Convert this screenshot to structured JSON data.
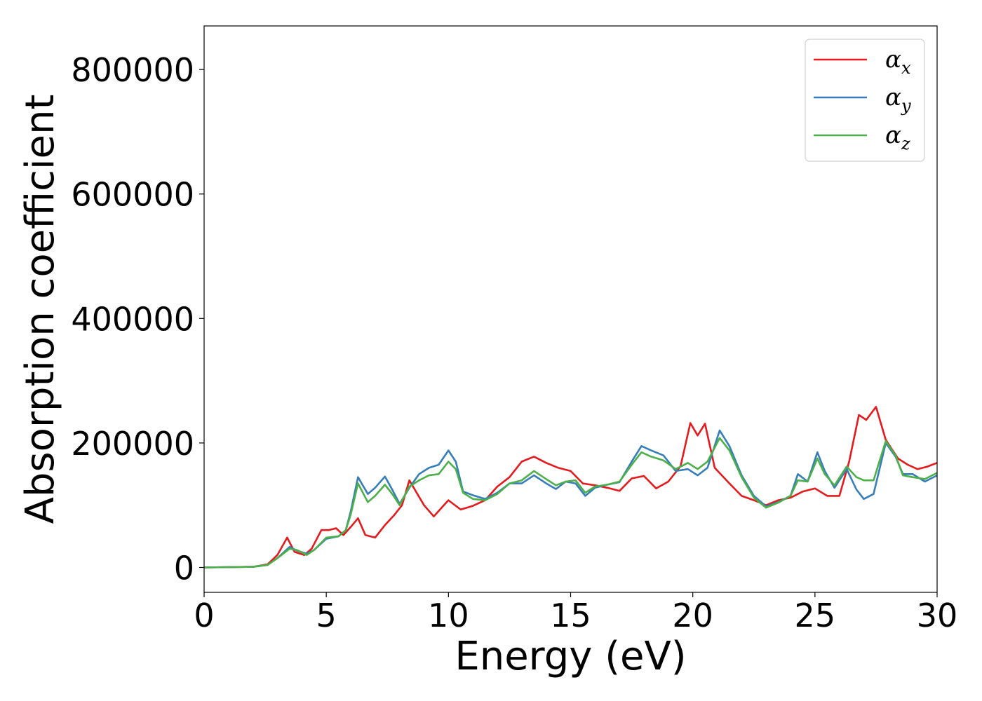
{
  "chart_data": {
    "type": "line",
    "xlabel": "Energy (eV)",
    "ylabel": "Absorption coefficient",
    "xlim": [
      0,
      30
    ],
    "ylim": [
      -40000,
      870000
    ],
    "xticks": [
      "0",
      "5",
      "10",
      "15",
      "20",
      "25",
      "30"
    ],
    "yticks": [
      "0",
      "200000",
      "400000",
      "600000",
      "800000"
    ],
    "legend_position": "top-right",
    "grid": false,
    "series": [
      {
        "name": "α",
        "subscript": "x",
        "color": "#e41a1c",
        "points": [
          [
            0,
            0
          ],
          [
            2,
            1000
          ],
          [
            2.6,
            5000
          ],
          [
            3.0,
            20000
          ],
          [
            3.4,
            48000
          ],
          [
            3.7,
            25000
          ],
          [
            4.1,
            20000
          ],
          [
            4.4,
            30000
          ],
          [
            4.8,
            60000
          ],
          [
            5.1,
            60000
          ],
          [
            5.4,
            63000
          ],
          [
            5.7,
            52000
          ],
          [
            6.0,
            65000
          ],
          [
            6.3,
            79000
          ],
          [
            6.6,
            52000
          ],
          [
            7.0,
            48000
          ],
          [
            7.4,
            68000
          ],
          [
            7.8,
            85000
          ],
          [
            8.1,
            100000
          ],
          [
            8.4,
            140000
          ],
          [
            8.7,
            120000
          ],
          [
            9.0,
            100000
          ],
          [
            9.4,
            82000
          ],
          [
            10.0,
            108000
          ],
          [
            10.5,
            93000
          ],
          [
            11.0,
            99000
          ],
          [
            11.5,
            108000
          ],
          [
            12.0,
            130000
          ],
          [
            12.5,
            145000
          ],
          [
            13.0,
            170000
          ],
          [
            13.5,
            178000
          ],
          [
            14.0,
            168000
          ],
          [
            14.5,
            160000
          ],
          [
            15.0,
            155000
          ],
          [
            15.5,
            135000
          ],
          [
            16.0,
            132000
          ],
          [
            16.5,
            128000
          ],
          [
            17.0,
            123000
          ],
          [
            17.5,
            143000
          ],
          [
            18.0,
            147000
          ],
          [
            18.5,
            127000
          ],
          [
            19.0,
            138000
          ],
          [
            19.5,
            163000
          ],
          [
            19.9,
            232000
          ],
          [
            20.2,
            212000
          ],
          [
            20.5,
            231000
          ],
          [
            20.9,
            160000
          ],
          [
            21.5,
            135000
          ],
          [
            22.0,
            115000
          ],
          [
            22.5,
            108000
          ],
          [
            23.0,
            100000
          ],
          [
            23.5,
            108000
          ],
          [
            24.0,
            112000
          ],
          [
            24.5,
            122000
          ],
          [
            25.0,
            127000
          ],
          [
            25.5,
            115000
          ],
          [
            26.0,
            115000
          ],
          [
            26.4,
            170000
          ],
          [
            26.8,
            245000
          ],
          [
            27.1,
            237000
          ],
          [
            27.5,
            258000
          ],
          [
            27.9,
            205000
          ],
          [
            28.4,
            175000
          ],
          [
            28.8,
            165000
          ],
          [
            29.2,
            158000
          ],
          [
            29.6,
            162000
          ],
          [
            30,
            168000
          ]
        ]
      },
      {
        "name": "α",
        "subscript": "y",
        "color": "#377eb8",
        "points": [
          [
            0,
            0
          ],
          [
            2,
            1000
          ],
          [
            2.6,
            4000
          ],
          [
            3.0,
            15000
          ],
          [
            3.5,
            33000
          ],
          [
            3.8,
            27000
          ],
          [
            4.2,
            22000
          ],
          [
            4.5,
            28000
          ],
          [
            5.0,
            46000
          ],
          [
            5.5,
            50000
          ],
          [
            5.8,
            60000
          ],
          [
            6.0,
            90000
          ],
          [
            6.3,
            145000
          ],
          [
            6.7,
            118000
          ],
          [
            7.0,
            128000
          ],
          [
            7.4,
            146000
          ],
          [
            7.7,
            125000
          ],
          [
            8.0,
            102000
          ],
          [
            8.4,
            128000
          ],
          [
            8.8,
            150000
          ],
          [
            9.2,
            160000
          ],
          [
            9.6,
            165000
          ],
          [
            10.0,
            188000
          ],
          [
            10.3,
            170000
          ],
          [
            10.6,
            122000
          ],
          [
            11.0,
            116000
          ],
          [
            11.5,
            110000
          ],
          [
            12.0,
            120000
          ],
          [
            12.5,
            135000
          ],
          [
            13.0,
            135000
          ],
          [
            13.5,
            148000
          ],
          [
            14.0,
            135000
          ],
          [
            14.4,
            126000
          ],
          [
            14.8,
            138000
          ],
          [
            15.2,
            135000
          ],
          [
            15.6,
            115000
          ],
          [
            16.0,
            128000
          ],
          [
            16.5,
            133000
          ],
          [
            17.0,
            137000
          ],
          [
            17.5,
            170000
          ],
          [
            17.9,
            195000
          ],
          [
            18.3,
            188000
          ],
          [
            18.8,
            180000
          ],
          [
            19.3,
            155000
          ],
          [
            19.8,
            158000
          ],
          [
            20.2,
            148000
          ],
          [
            20.6,
            160000
          ],
          [
            21.1,
            220000
          ],
          [
            21.5,
            195000
          ],
          [
            22.0,
            148000
          ],
          [
            22.5,
            115000
          ],
          [
            23.0,
            98000
          ],
          [
            23.5,
            105000
          ],
          [
            24.0,
            115000
          ],
          [
            24.3,
            150000
          ],
          [
            24.7,
            138000
          ],
          [
            25.1,
            185000
          ],
          [
            25.4,
            155000
          ],
          [
            25.8,
            128000
          ],
          [
            26.3,
            158000
          ],
          [
            26.7,
            125000
          ],
          [
            27.0,
            110000
          ],
          [
            27.4,
            118000
          ],
          [
            27.9,
            200000
          ],
          [
            28.3,
            178000
          ],
          [
            28.6,
            150000
          ],
          [
            29.0,
            150000
          ],
          [
            29.5,
            138000
          ],
          [
            30,
            148000
          ]
        ]
      },
      {
        "name": "α",
        "subscript": "z",
        "color": "#4daf4a",
        "points": [
          [
            0,
            0
          ],
          [
            2,
            1000
          ],
          [
            2.6,
            4000
          ],
          [
            3.0,
            15000
          ],
          [
            3.5,
            30000
          ],
          [
            3.8,
            28000
          ],
          [
            4.2,
            20000
          ],
          [
            4.5,
            28000
          ],
          [
            5.0,
            48000
          ],
          [
            5.5,
            50000
          ],
          [
            5.8,
            60000
          ],
          [
            6.0,
            85000
          ],
          [
            6.3,
            135000
          ],
          [
            6.7,
            105000
          ],
          [
            7.0,
            115000
          ],
          [
            7.4,
            133000
          ],
          [
            7.7,
            118000
          ],
          [
            8.0,
            100000
          ],
          [
            8.4,
            130000
          ],
          [
            8.8,
            140000
          ],
          [
            9.2,
            148000
          ],
          [
            9.6,
            150000
          ],
          [
            10.0,
            170000
          ],
          [
            10.3,
            158000
          ],
          [
            10.6,
            120000
          ],
          [
            11.0,
            110000
          ],
          [
            11.5,
            108000
          ],
          [
            12.0,
            118000
          ],
          [
            12.5,
            135000
          ],
          [
            13.0,
            140000
          ],
          [
            13.5,
            155000
          ],
          [
            14.0,
            142000
          ],
          [
            14.4,
            132000
          ],
          [
            14.8,
            138000
          ],
          [
            15.2,
            140000
          ],
          [
            15.6,
            120000
          ],
          [
            16.0,
            130000
          ],
          [
            16.5,
            133000
          ],
          [
            17.0,
            138000
          ],
          [
            17.5,
            165000
          ],
          [
            17.9,
            185000
          ],
          [
            18.3,
            178000
          ],
          [
            18.8,
            172000
          ],
          [
            19.3,
            158000
          ],
          [
            19.8,
            168000
          ],
          [
            20.2,
            158000
          ],
          [
            20.6,
            170000
          ],
          [
            21.1,
            208000
          ],
          [
            21.5,
            188000
          ],
          [
            22.0,
            145000
          ],
          [
            22.5,
            112000
          ],
          [
            23.0,
            96000
          ],
          [
            23.5,
            104000
          ],
          [
            24.0,
            115000
          ],
          [
            24.3,
            140000
          ],
          [
            24.7,
            138000
          ],
          [
            25.1,
            175000
          ],
          [
            25.4,
            150000
          ],
          [
            25.8,
            132000
          ],
          [
            26.3,
            162000
          ],
          [
            26.7,
            145000
          ],
          [
            27.0,
            140000
          ],
          [
            27.4,
            140000
          ],
          [
            27.9,
            203000
          ],
          [
            28.3,
            180000
          ],
          [
            28.6,
            148000
          ],
          [
            29.0,
            145000
          ],
          [
            29.5,
            142000
          ],
          [
            30,
            152000
          ]
        ]
      }
    ]
  }
}
